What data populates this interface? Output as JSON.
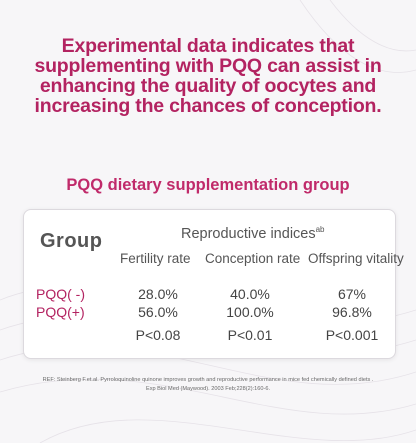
{
  "headline": {
    "line1": "Experimental data indicates that",
    "line2": "supplementing with PQQ can assist in",
    "line3": "enhancing the quality of oocytes and",
    "line4": "increasing the chances of conception."
  },
  "section_title": "PQQ dietary supplementation group",
  "table": {
    "group_header": "Group",
    "super_header": "Reproductive indices",
    "super_header_sup": "ab",
    "columns": [
      "Fertility rate",
      "Conception rate",
      "Offspring vitality"
    ],
    "rows": [
      {
        "label": "PQQ( -)",
        "values": [
          "28.0%",
          "40.0%",
          "67%"
        ]
      },
      {
        "label": "PQQ(+)",
        "values": [
          "56.0%",
          "100.0%",
          "96.8%"
        ]
      },
      {
        "label": "",
        "values": [
          "P<0.08",
          "P<0.01",
          "P<0.001"
        ]
      }
    ]
  },
  "reference": {
    "line1": "REF: Steinberg F.et.al. Pyrroloquinoline quinone improves growth and reproductive performance in mice fed chemically defined diets .",
    "line2": "Exp Biol Med (Maywood). 2003 Feb;228(2):160-6."
  },
  "colors": {
    "headline": "#b32361",
    "section_title": "#c02a6a",
    "background": "#f7f6f8"
  }
}
